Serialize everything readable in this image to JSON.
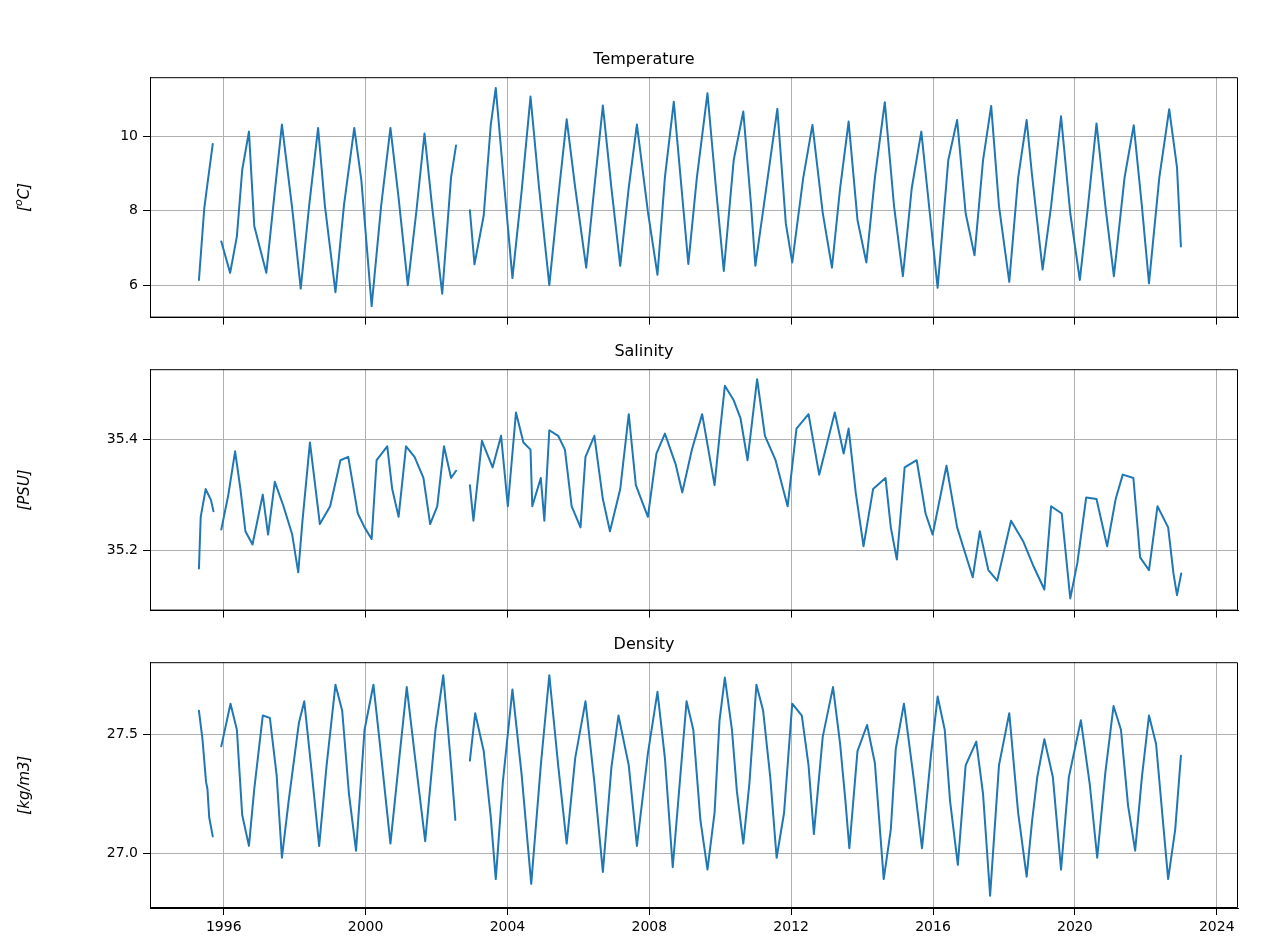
{
  "chart_data": [
    {
      "type": "line",
      "title": "Temperature",
      "ylabel": "[$^{o}$C]",
      "color": "#1f77b4",
      "grid": true,
      "tick_labels": "y",
      "xlim": [
        1993.92,
        2024.6
      ],
      "xticks": [
        1996,
        2000,
        2004,
        2008,
        2012,
        2016,
        2020,
        2024
      ],
      "ylim": [
        5.13,
        11.58
      ],
      "yticks": [
        6,
        8,
        10
      ],
      "x": [
        1995.3,
        1995.45,
        1995.54,
        1995.69,
        1995.81,
        1995.93,
        1996.18,
        1996.37,
        1996.52,
        1996.71,
        1996.86,
        1997.2,
        1997.44,
        1997.64,
        1997.93,
        1998.17,
        1998.41,
        1998.66,
        1998.85,
        1999.15,
        1999.39,
        1999.68,
        1999.88,
        2000.17,
        2000.44,
        2000.7,
        2000.93,
        2001.19,
        2001.43,
        2001.66,
        2001.87,
        2002.16,
        2002.41,
        2002.55,
        2002.75,
        2002.94,
        2003.07,
        2003.33,
        2003.53,
        2003.67,
        2003.87,
        2004.14,
        2004.4,
        2004.65,
        2004.89,
        2005.18,
        2005.43,
        2005.67,
        2005.91,
        2006.22,
        2006.45,
        2006.69,
        2006.93,
        2007.18,
        2007.42,
        2007.65,
        2007.96,
        2008.23,
        2008.44,
        2008.69,
        2009.1,
        2009.34,
        2009.64,
        2009.88,
        2010.1,
        2010.38,
        2010.65,
        2010.87,
        2010.99,
        2011.31,
        2011.61,
        2011.85,
        2012.03,
        2012.34,
        2012.6,
        2012.89,
        2013.15,
        2013.38,
        2013.62,
        2013.87,
        2014.12,
        2014.36,
        2014.64,
        2014.9,
        2015.15,
        2015.4,
        2015.67,
        2015.91,
        2016.13,
        2016.43,
        2016.68,
        2016.92,
        2017.17,
        2017.41,
        2017.64,
        2017.86,
        2018.15,
        2018.4,
        2018.64,
        2018.79,
        2019.09,
        2019.33,
        2019.61,
        2019.87,
        2020.14,
        2020.37,
        2020.61,
        2020.86,
        2021.1,
        2021.4,
        2021.66,
        2021.89,
        2022.09,
        2022.38,
        2022.66,
        2022.88,
        2022.99
      ],
      "values": [
        6.14,
        8.06,
        8.72,
        9.79,
        null,
        7.17,
        6.33,
        7.31,
        9.09,
        10.12,
        7.59,
        6.33,
        8.53,
        10.31,
        8.06,
        5.91,
        8.15,
        10.22,
        8.15,
        5.81,
        8.15,
        10.22,
        8.81,
        5.44,
        8.15,
        10.22,
        8.34,
        6.0,
        7.97,
        10.07,
        8.15,
        5.77,
        8.9,
        9.75,
        null,
        8.01,
        6.56,
        7.87,
        10.31,
        11.29,
        9.09,
        6.19,
        8.53,
        11.06,
        8.62,
        6.0,
        8.34,
        10.45,
        8.62,
        6.47,
        8.62,
        10.82,
        8.62,
        6.52,
        8.62,
        10.31,
        7.97,
        6.28,
        8.9,
        10.92,
        6.57,
        8.88,
        11.15,
        8.6,
        6.38,
        9.36,
        10.66,
        8.13,
        6.52,
        8.69,
        10.73,
        7.65,
        6.61,
        8.88,
        10.3,
        7.94,
        6.47,
        8.6,
        10.39,
        7.75,
        6.61,
        8.88,
        10.91,
        8.13,
        6.24,
        8.6,
        10.12,
        7.93,
        5.93,
        9.35,
        10.43,
        7.93,
        6.8,
        9.35,
        10.81,
        8.12,
        6.09,
        8.88,
        10.43,
        8.97,
        6.42,
        8.12,
        10.53,
        7.93,
        6.14,
        8.12,
        10.34,
        8.12,
        6.24,
        8.88,
        10.29,
        8.12,
        6.05,
        8.88,
        10.72,
        9.16,
        7.04
      ]
    },
    {
      "type": "line",
      "title": "Salinity",
      "ylabel": "[PSU]",
      "color": "#1f77b4",
      "grid": true,
      "tick_labels": "y",
      "xlim": [
        1993.92,
        2024.6
      ],
      "xticks": [
        1996,
        2000,
        2004,
        2008,
        2012,
        2016,
        2020,
        2024
      ],
      "ylim": [
        35.091,
        35.526
      ],
      "yticks": [
        35.2,
        35.4
      ],
      "x": [
        1995.3,
        1995.35,
        1995.49,
        1995.64,
        1995.71,
        1995.82,
        1995.93,
        1996.13,
        1996.32,
        1996.47,
        1996.61,
        1996.81,
        1997.1,
        1997.25,
        1997.44,
        1997.68,
        1997.93,
        1998.1,
        1998.22,
        1998.43,
        1998.71,
        1999.0,
        1999.29,
        1999.51,
        1999.78,
        1999.97,
        2000.17,
        2000.31,
        2000.61,
        2000.75,
        2000.93,
        2001.14,
        2001.38,
        2001.63,
        2001.82,
        2002.02,
        2002.21,
        2002.41,
        2002.55,
        2002.75,
        2002.94,
        2003.04,
        2003.28,
        2003.58,
        2003.82,
        2004.01,
        2004.24,
        2004.45,
        2004.65,
        2004.7,
        2004.94,
        2005.04,
        2005.18,
        2005.43,
        2005.62,
        2005.81,
        2006.06,
        2006.2,
        2006.45,
        2006.69,
        2006.89,
        2007.18,
        2007.42,
        2007.62,
        2007.96,
        2008.2,
        2008.44,
        2008.74,
        2008.93,
        2009.2,
        2009.49,
        2009.84,
        2009.98,
        2010.13,
        2010.38,
        2010.57,
        2010.77,
        2011.04,
        2011.26,
        2011.56,
        2011.9,
        2012.15,
        2012.49,
        2012.79,
        2013.23,
        2013.48,
        2013.62,
        2013.82,
        2014.04,
        2014.31,
        2014.66,
        2014.81,
        2014.98,
        2015.2,
        2015.54,
        2015.79,
        2015.99,
        2016.38,
        2016.68,
        2016.87,
        2017.12,
        2017.32,
        2017.56,
        2017.81,
        2018.2,
        2018.55,
        2018.84,
        2019.14,
        2019.33,
        2019.63,
        2019.87,
        2020.07,
        2020.32,
        2020.61,
        2020.91,
        2021.15,
        2021.35,
        2021.65,
        2021.84,
        2022.09,
        2022.33,
        2022.63,
        2022.78,
        2022.88,
        2023.0
      ],
      "values": [
        35.167,
        35.26,
        35.31,
        35.29,
        35.27,
        null,
        35.237,
        35.3,
        35.378,
        35.31,
        35.234,
        35.21,
        35.3,
        35.228,
        35.323,
        35.28,
        35.228,
        35.16,
        35.253,
        35.394,
        35.247,
        35.279,
        35.362,
        35.368,
        35.266,
        35.241,
        35.22,
        35.362,
        35.387,
        35.31,
        35.26,
        35.387,
        35.368,
        35.33,
        35.247,
        35.279,
        35.387,
        35.33,
        35.343,
        null,
        35.317,
        35.253,
        35.397,
        35.349,
        35.406,
        35.279,
        35.448,
        35.394,
        35.381,
        35.279,
        35.33,
        35.253,
        35.416,
        35.406,
        35.381,
        35.279,
        35.241,
        35.368,
        35.406,
        35.292,
        35.234,
        35.31,
        35.445,
        35.317,
        35.26,
        35.374,
        35.41,
        35.355,
        35.304,
        35.381,
        35.445,
        35.317,
        35.406,
        35.496,
        35.47,
        35.438,
        35.362,
        35.508,
        35.406,
        35.362,
        35.279,
        35.419,
        35.445,
        35.336,
        35.448,
        35.374,
        35.419,
        35.304,
        35.207,
        35.31,
        35.33,
        35.241,
        35.183,
        35.349,
        35.362,
        35.266,
        35.228,
        35.352,
        35.241,
        35.202,
        35.151,
        35.234,
        35.164,
        35.145,
        35.253,
        35.215,
        35.17,
        35.129,
        35.279,
        35.266,
        35.113,
        35.177,
        35.295,
        35.292,
        35.207,
        35.292,
        35.336,
        35.33,
        35.187,
        35.164,
        35.279,
        35.241,
        35.158,
        35.119,
        35.158
      ]
    },
    {
      "type": "line",
      "title": "Density",
      "ylabel": "[kg/m3]",
      "color": "#1f77b4",
      "grid": true,
      "xlim": [
        1993.92,
        2024.6
      ],
      "xticks": [
        1996,
        2000,
        2004,
        2008,
        2012,
        2016,
        2020,
        2024
      ],
      "ylim": [
        26.768,
        27.805
      ],
      "yticks": [
        {
          "value": 27,
          "label": "27.0"
        },
        27.5
      ],
      "x": [
        1995.3,
        1995.4,
        1995.5,
        1995.54,
        1995.59,
        1995.69,
        1995.81,
        1995.93,
        1996.19,
        1996.37,
        1996.52,
        1996.71,
        1996.86,
        1997.1,
        1997.3,
        1997.49,
        1997.64,
        1997.83,
        1998.12,
        1998.27,
        1998.46,
        1998.69,
        1998.9,
        1999.15,
        1999.34,
        1999.53,
        1999.73,
        1999.97,
        2000.22,
        2000.41,
        2000.7,
        2000.95,
        2001.16,
        2001.38,
        2001.68,
        2001.97,
        2002.19,
        2002.41,
        2002.53,
        2002.74,
        2002.94,
        2003.09,
        2003.33,
        2003.53,
        2003.67,
        2003.87,
        2004.14,
        2004.4,
        2004.67,
        2004.94,
        2005.18,
        2005.43,
        2005.67,
        2005.91,
        2006.2,
        2006.45,
        2006.69,
        2006.93,
        2007.13,
        2007.42,
        2007.65,
        2007.96,
        2008.23,
        2008.44,
        2008.66,
        2009.05,
        2009.24,
        2009.44,
        2009.64,
        2009.84,
        2009.98,
        2010.13,
        2010.33,
        2010.47,
        2010.65,
        2010.82,
        2011.02,
        2011.21,
        2011.41,
        2011.59,
        2011.8,
        2012.03,
        2012.3,
        2012.49,
        2012.64,
        2012.89,
        2013.18,
        2013.38,
        2013.53,
        2013.64,
        2013.87,
        2014.14,
        2014.36,
        2014.61,
        2014.81,
        2014.95,
        2015.18,
        2015.45,
        2015.69,
        2015.94,
        2016.13,
        2016.33,
        2016.48,
        2016.7,
        2016.92,
        2017.22,
        2017.41,
        2017.61,
        2017.86,
        2018.15,
        2018.4,
        2018.64,
        2018.79,
        2018.94,
        2019.14,
        2019.38,
        2019.61,
        2019.83,
        2020.17,
        2020.42,
        2020.63,
        2020.86,
        2021.09,
        2021.3,
        2021.5,
        2021.7,
        2021.89,
        2022.09,
        2022.29,
        2022.48,
        2022.63,
        2022.83,
        2022.99
      ],
      "values": [
        27.6,
        27.48,
        27.3,
        27.27,
        27.15,
        27.07,
        null,
        27.45,
        27.63,
        27.52,
        27.16,
        27.03,
        27.27,
        27.58,
        27.57,
        27.33,
        26.98,
        27.22,
        27.55,
        27.64,
        27.37,
        27.03,
        27.37,
        27.71,
        27.6,
        27.25,
        27.01,
        27.52,
        27.71,
        27.45,
        27.04,
        27.4,
        27.7,
        27.42,
        27.05,
        27.52,
        27.75,
        27.37,
        27.14,
        null,
        27.39,
        27.59,
        27.43,
        27.15,
        26.89,
        27.3,
        27.69,
        27.33,
        26.87,
        27.37,
        27.75,
        27.37,
        27.04,
        27.4,
        27.64,
        27.3,
        26.92,
        27.36,
        27.58,
        27.37,
        27.03,
        27.42,
        27.68,
        27.4,
        26.94,
        27.64,
        27.52,
        27.14,
        26.93,
        27.17,
        27.56,
        27.74,
        27.52,
        27.26,
        27.04,
        27.29,
        27.71,
        27.6,
        27.32,
        26.98,
        27.17,
        27.63,
        27.58,
        27.37,
        27.08,
        27.49,
        27.7,
        27.46,
        27.22,
        27.02,
        27.43,
        27.54,
        27.38,
        26.89,
        27.1,
        27.44,
        27.63,
        27.32,
        27.02,
        27.41,
        27.66,
        27.52,
        27.22,
        26.95,
        27.37,
        27.47,
        27.25,
        26.82,
        27.37,
        27.59,
        27.17,
        26.9,
        27.13,
        27.32,
        27.48,
        27.32,
        26.93,
        27.32,
        27.56,
        27.29,
        26.98,
        27.34,
        27.62,
        27.52,
        27.2,
        27.01,
        27.32,
        27.58,
        27.46,
        27.14,
        26.89,
        27.1,
        27.41
      ]
    }
  ]
}
